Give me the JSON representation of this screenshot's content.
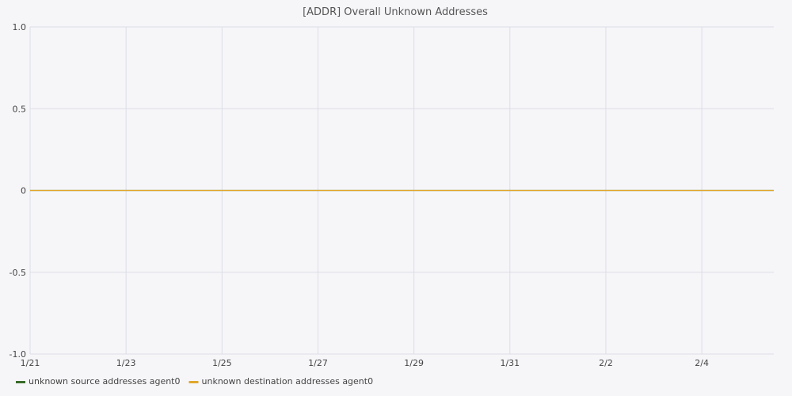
{
  "chart_data": {
    "type": "line",
    "title": "[ADDR] Overall Unknown Addresses",
    "xlabel": "",
    "ylabel": "",
    "ylim": [
      -1.0,
      1.0
    ],
    "y_ticks": [
      "1.0",
      "0.5",
      "0",
      "-0.5",
      "-1.0"
    ],
    "y_tick_values": [
      1.0,
      0.5,
      0,
      -0.5,
      -1.0
    ],
    "x_ticks": [
      "1/21",
      "1/23",
      "1/25",
      "1/27",
      "1/29",
      "1/31",
      "2/2",
      "2/4"
    ],
    "x_tick_days": [
      0,
      2,
      4,
      6,
      8,
      10,
      12,
      14
    ],
    "x_range_days": [
      0,
      15.5
    ],
    "grid": true,
    "legend_position": "bottom-left",
    "series": [
      {
        "name": "unknown source addresses agent0",
        "color": "#3a6b2a",
        "x": [
          0,
          15.5
        ],
        "values": [
          0,
          0
        ]
      },
      {
        "name": "unknown destination addresses agent0",
        "color": "#e0a72a",
        "x": [
          0,
          15.5
        ],
        "values": [
          0,
          0
        ]
      }
    ]
  }
}
